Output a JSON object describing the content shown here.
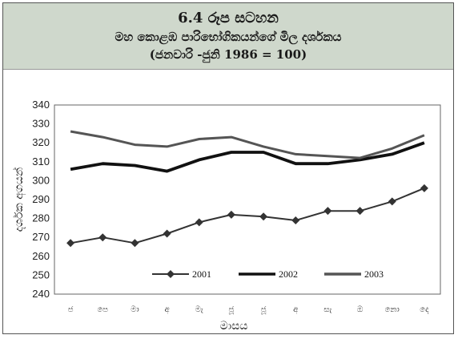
{
  "title": {
    "line1": "6.4 රූප සටහන",
    "line2": "මහ කොළඹ පාරිභෝගිකයන්ගේ මිල දර්ශකය",
    "line3": "(ජනවාරි -ජුනි 1986 = 100)"
  },
  "chart_data": {
    "type": "line",
    "title": "මහ කොළඹ පාරිභෝගිකයන්ගේ මිල දර්ශකය",
    "xlabel": "මාසය",
    "ylabel": "දර්ශක අගයන්",
    "categories": [
      "ජ",
      "පෙ",
      "මා",
      "අ",
      "මැ",
      "ජූ",
      "ජූ",
      "අ",
      "සැ",
      "ඔ",
      "නො",
      "දෙ"
    ],
    "ylim": [
      240,
      340
    ],
    "yticks": [
      240,
      250,
      260,
      270,
      280,
      290,
      300,
      310,
      320,
      330,
      340
    ],
    "legend_position": "lower-center",
    "grid": false,
    "series": [
      {
        "name": "2001",
        "color": "#333333",
        "marker": "diamond",
        "values": [
          267,
          270,
          267,
          272,
          278,
          282,
          281,
          279,
          284,
          284,
          289,
          296
        ]
      },
      {
        "name": "2002",
        "color": "#111111",
        "marker": "none",
        "values": [
          306,
          309,
          308,
          305,
          311,
          315,
          315,
          309,
          309,
          311,
          314,
          320
        ]
      },
      {
        "name": "2003",
        "color": "#555555",
        "marker": "none",
        "values": [
          326,
          323,
          319,
          318,
          322,
          323,
          318,
          314,
          313,
          312,
          317,
          324
        ]
      }
    ]
  }
}
